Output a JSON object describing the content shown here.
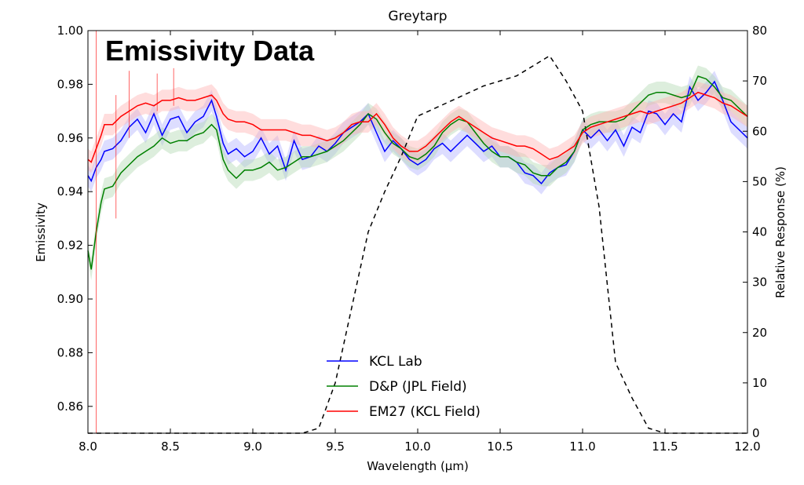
{
  "overlay_title": "Emissivity Data",
  "chart_data": {
    "type": "line",
    "title": "Greytarp",
    "xlabel": "Wavelength (μm)",
    "ylabel": "Emissivity",
    "y2label": "Relative Response (%)",
    "xlim": [
      8.0,
      12.0
    ],
    "ylim": [
      0.85,
      1.0
    ],
    "y2lim": [
      0,
      80
    ],
    "xticks": [
      "8.0",
      "8.5",
      "9.0",
      "9.5",
      "10.0",
      "10.5",
      "11.0",
      "11.5",
      "12.0"
    ],
    "yticks": [
      "0.86",
      "0.88",
      "0.90",
      "0.92",
      "0.94",
      "0.96",
      "0.98",
      "1.00"
    ],
    "y2ticks": [
      "0",
      "10",
      "20",
      "30",
      "40",
      "50",
      "60",
      "70",
      "80"
    ],
    "grid": false,
    "legend_position": "bottom-center",
    "series": [
      {
        "name": "KCL Lab",
        "color": "#0000ff",
        "band_color": "#b3b3ff",
        "points": [
          [
            8.0,
            0.946
          ],
          [
            8.02,
            0.944
          ],
          [
            8.05,
            0.949
          ],
          [
            8.08,
            0.952
          ],
          [
            8.1,
            0.955
          ],
          [
            8.15,
            0.956
          ],
          [
            8.2,
            0.959
          ],
          [
            8.25,
            0.964
          ],
          [
            8.3,
            0.967
          ],
          [
            8.35,
            0.962
          ],
          [
            8.4,
            0.969
          ],
          [
            8.45,
            0.961
          ],
          [
            8.5,
            0.967
          ],
          [
            8.55,
            0.968
          ],
          [
            8.6,
            0.962
          ],
          [
            8.65,
            0.966
          ],
          [
            8.7,
            0.968
          ],
          [
            8.75,
            0.974
          ],
          [
            8.78,
            0.968
          ],
          [
            8.82,
            0.958
          ],
          [
            8.85,
            0.954
          ],
          [
            8.9,
            0.956
          ],
          [
            8.95,
            0.953
          ],
          [
            9.0,
            0.955
          ],
          [
            9.05,
            0.96
          ],
          [
            9.1,
            0.954
          ],
          [
            9.15,
            0.957
          ],
          [
            9.2,
            0.948
          ],
          [
            9.25,
            0.959
          ],
          [
            9.3,
            0.952
          ],
          [
            9.35,
            0.953
          ],
          [
            9.4,
            0.957
          ],
          [
            9.45,
            0.955
          ],
          [
            9.5,
            0.958
          ],
          [
            9.55,
            0.962
          ],
          [
            9.6,
            0.964
          ],
          [
            9.65,
            0.966
          ],
          [
            9.7,
            0.969
          ],
          [
            9.75,
            0.962
          ],
          [
            9.8,
            0.955
          ],
          [
            9.85,
            0.959
          ],
          [
            9.9,
            0.956
          ],
          [
            9.95,
            0.952
          ],
          [
            10.0,
            0.95
          ],
          [
            10.05,
            0.952
          ],
          [
            10.1,
            0.956
          ],
          [
            10.15,
            0.958
          ],
          [
            10.2,
            0.955
          ],
          [
            10.25,
            0.958
          ],
          [
            10.3,
            0.961
          ],
          [
            10.35,
            0.958
          ],
          [
            10.4,
            0.955
          ],
          [
            10.45,
            0.957
          ],
          [
            10.5,
            0.953
          ],
          [
            10.55,
            0.953
          ],
          [
            10.6,
            0.951
          ],
          [
            10.65,
            0.947
          ],
          [
            10.7,
            0.946
          ],
          [
            10.75,
            0.943
          ],
          [
            10.8,
            0.947
          ],
          [
            10.85,
            0.949
          ],
          [
            10.9,
            0.95
          ],
          [
            10.95,
            0.955
          ],
          [
            11.0,
            0.963
          ],
          [
            11.05,
            0.96
          ],
          [
            11.1,
            0.963
          ],
          [
            11.15,
            0.959
          ],
          [
            11.2,
            0.963
          ],
          [
            11.25,
            0.957
          ],
          [
            11.3,
            0.964
          ],
          [
            11.35,
            0.962
          ],
          [
            11.4,
            0.97
          ],
          [
            11.45,
            0.969
          ],
          [
            11.5,
            0.965
          ],
          [
            11.55,
            0.969
          ],
          [
            11.6,
            0.966
          ],
          [
            11.65,
            0.979
          ],
          [
            11.7,
            0.974
          ],
          [
            11.75,
            0.977
          ],
          [
            11.8,
            0.981
          ],
          [
            11.85,
            0.974
          ],
          [
            11.9,
            0.966
          ],
          [
            11.95,
            0.963
          ],
          [
            12.0,
            0.96
          ]
        ]
      },
      {
        "name": "D&P (JPL Field)",
        "color": "#008000",
        "band_color": "#b3d9b3",
        "points": [
          [
            8.0,
            0.918
          ],
          [
            8.02,
            0.911
          ],
          [
            8.05,
            0.925
          ],
          [
            8.08,
            0.936
          ],
          [
            8.1,
            0.941
          ],
          [
            8.15,
            0.942
          ],
          [
            8.2,
            0.947
          ],
          [
            8.25,
            0.95
          ],
          [
            8.3,
            0.953
          ],
          [
            8.35,
            0.955
          ],
          [
            8.4,
            0.957
          ],
          [
            8.45,
            0.96
          ],
          [
            8.5,
            0.958
          ],
          [
            8.55,
            0.959
          ],
          [
            8.6,
            0.959
          ],
          [
            8.65,
            0.961
          ],
          [
            8.7,
            0.962
          ],
          [
            8.75,
            0.965
          ],
          [
            8.78,
            0.963
          ],
          [
            8.82,
            0.952
          ],
          [
            8.85,
            0.948
          ],
          [
            8.9,
            0.945
          ],
          [
            8.95,
            0.948
          ],
          [
            9.0,
            0.948
          ],
          [
            9.05,
            0.949
          ],
          [
            9.1,
            0.951
          ],
          [
            9.15,
            0.948
          ],
          [
            9.2,
            0.949
          ],
          [
            9.25,
            0.951
          ],
          [
            9.3,
            0.953
          ],
          [
            9.35,
            0.953
          ],
          [
            9.4,
            0.954
          ],
          [
            9.45,
            0.955
          ],
          [
            9.5,
            0.957
          ],
          [
            9.55,
            0.959
          ],
          [
            9.6,
            0.962
          ],
          [
            9.65,
            0.965
          ],
          [
            9.7,
            0.969
          ],
          [
            9.75,
            0.967
          ],
          [
            9.8,
            0.962
          ],
          [
            9.85,
            0.958
          ],
          [
            9.9,
            0.956
          ],
          [
            9.95,
            0.953
          ],
          [
            10.0,
            0.952
          ],
          [
            10.05,
            0.954
          ],
          [
            10.1,
            0.957
          ],
          [
            10.15,
            0.962
          ],
          [
            10.2,
            0.965
          ],
          [
            10.25,
            0.967
          ],
          [
            10.3,
            0.966
          ],
          [
            10.35,
            0.962
          ],
          [
            10.4,
            0.958
          ],
          [
            10.45,
            0.955
          ],
          [
            10.5,
            0.953
          ],
          [
            10.55,
            0.953
          ],
          [
            10.6,
            0.951
          ],
          [
            10.65,
            0.95
          ],
          [
            10.7,
            0.947
          ],
          [
            10.75,
            0.946
          ],
          [
            10.8,
            0.946
          ],
          [
            10.85,
            0.949
          ],
          [
            10.9,
            0.951
          ],
          [
            10.95,
            0.955
          ],
          [
            11.0,
            0.963
          ],
          [
            11.05,
            0.965
          ],
          [
            11.1,
            0.966
          ],
          [
            11.15,
            0.966
          ],
          [
            11.2,
            0.966
          ],
          [
            11.25,
            0.967
          ],
          [
            11.3,
            0.97
          ],
          [
            11.35,
            0.973
          ],
          [
            11.4,
            0.976
          ],
          [
            11.45,
            0.977
          ],
          [
            11.5,
            0.977
          ],
          [
            11.55,
            0.976
          ],
          [
            11.6,
            0.975
          ],
          [
            11.65,
            0.976
          ],
          [
            11.7,
            0.983
          ],
          [
            11.75,
            0.982
          ],
          [
            11.8,
            0.979
          ],
          [
            11.85,
            0.975
          ],
          [
            11.9,
            0.974
          ],
          [
            11.95,
            0.971
          ],
          [
            12.0,
            0.968
          ]
        ]
      },
      {
        "name": "EM27 (KCL Field)",
        "color": "#ff0000",
        "band_color": "#ffb3b3",
        "points": [
          [
            8.0,
            0.952
          ],
          [
            8.02,
            0.951
          ],
          [
            8.05,
            0.956
          ],
          [
            8.08,
            0.961
          ],
          [
            8.1,
            0.965
          ],
          [
            8.15,
            0.965
          ],
          [
            8.2,
            0.968
          ],
          [
            8.25,
            0.97
          ],
          [
            8.3,
            0.972
          ],
          [
            8.35,
            0.973
          ],
          [
            8.4,
            0.972
          ],
          [
            8.45,
            0.974
          ],
          [
            8.5,
            0.974
          ],
          [
            8.55,
            0.975
          ],
          [
            8.6,
            0.974
          ],
          [
            8.65,
            0.974
          ],
          [
            8.7,
            0.975
          ],
          [
            8.75,
            0.976
          ],
          [
            8.78,
            0.974
          ],
          [
            8.82,
            0.969
          ],
          [
            8.85,
            0.967
          ],
          [
            8.9,
            0.966
          ],
          [
            8.95,
            0.966
          ],
          [
            9.0,
            0.965
          ],
          [
            9.05,
            0.963
          ],
          [
            9.1,
            0.963
          ],
          [
            9.15,
            0.963
          ],
          [
            9.2,
            0.963
          ],
          [
            9.25,
            0.962
          ],
          [
            9.3,
            0.961
          ],
          [
            9.35,
            0.961
          ],
          [
            9.4,
            0.96
          ],
          [
            9.45,
            0.959
          ],
          [
            9.5,
            0.96
          ],
          [
            9.55,
            0.962
          ],
          [
            9.6,
            0.965
          ],
          [
            9.65,
            0.966
          ],
          [
            9.7,
            0.966
          ],
          [
            9.75,
            0.969
          ],
          [
            9.8,
            0.965
          ],
          [
            9.85,
            0.96
          ],
          [
            9.9,
            0.957
          ],
          [
            9.95,
            0.955
          ],
          [
            10.0,
            0.955
          ],
          [
            10.05,
            0.957
          ],
          [
            10.1,
            0.96
          ],
          [
            10.15,
            0.963
          ],
          [
            10.2,
            0.966
          ],
          [
            10.25,
            0.968
          ],
          [
            10.3,
            0.966
          ],
          [
            10.35,
            0.964
          ],
          [
            10.4,
            0.962
          ],
          [
            10.45,
            0.96
          ],
          [
            10.5,
            0.959
          ],
          [
            10.55,
            0.958
          ],
          [
            10.6,
            0.957
          ],
          [
            10.65,
            0.957
          ],
          [
            10.7,
            0.956
          ],
          [
            10.75,
            0.954
          ],
          [
            10.8,
            0.952
          ],
          [
            10.85,
            0.953
          ],
          [
            10.9,
            0.955
          ],
          [
            10.95,
            0.957
          ],
          [
            11.0,
            0.962
          ],
          [
            11.05,
            0.964
          ],
          [
            11.1,
            0.965
          ],
          [
            11.15,
            0.966
          ],
          [
            11.2,
            0.967
          ],
          [
            11.25,
            0.968
          ],
          [
            11.3,
            0.969
          ],
          [
            11.35,
            0.97
          ],
          [
            11.4,
            0.969
          ],
          [
            11.45,
            0.97
          ],
          [
            11.5,
            0.971
          ],
          [
            11.55,
            0.972
          ],
          [
            11.6,
            0.973
          ],
          [
            11.65,
            0.975
          ],
          [
            11.7,
            0.977
          ],
          [
            11.75,
            0.976
          ],
          [
            11.8,
            0.975
          ],
          [
            11.85,
            0.973
          ],
          [
            11.9,
            0.972
          ],
          [
            11.95,
            0.97
          ],
          [
            12.0,
            0.968
          ]
        ]
      },
      {
        "name": "Relative Response",
        "color": "#000000",
        "axis": "y2",
        "dashed": true,
        "points": [
          [
            8.0,
            0
          ],
          [
            9.3,
            0
          ],
          [
            9.4,
            1
          ],
          [
            9.5,
            10
          ],
          [
            9.6,
            25
          ],
          [
            9.7,
            40
          ],
          [
            9.8,
            48
          ],
          [
            9.9,
            55
          ],
          [
            10.0,
            63
          ],
          [
            10.2,
            66
          ],
          [
            10.4,
            69
          ],
          [
            10.6,
            71
          ],
          [
            10.8,
            75
          ],
          [
            10.9,
            70
          ],
          [
            11.0,
            64
          ],
          [
            11.1,
            45
          ],
          [
            11.2,
            14
          ],
          [
            11.3,
            7
          ],
          [
            11.4,
            1
          ],
          [
            11.5,
            0
          ],
          [
            11.6,
            0
          ],
          [
            12.0,
            0
          ]
        ]
      }
    ]
  }
}
